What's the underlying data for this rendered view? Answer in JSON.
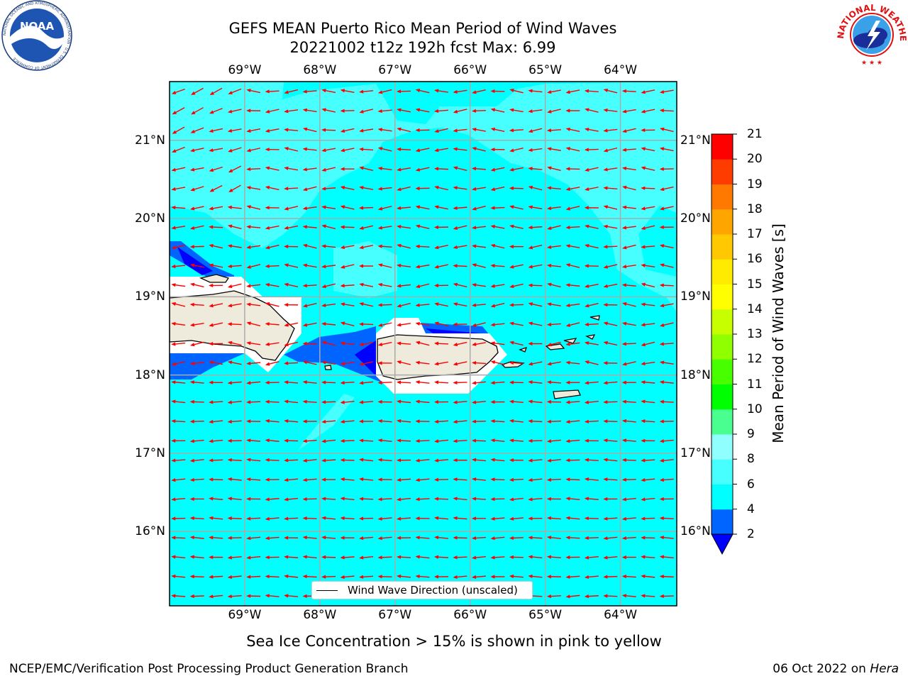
{
  "header": {
    "title_line1": "GEFS MEAN Puerto Rico Mean Period of Wind Waves",
    "title_line2": "20221002 t12z 192h fcst   Max: 6.99"
  },
  "logos": {
    "left": {
      "name": "NOAA",
      "ring_text": "NATIONAL OCEANIC AND ATMOSPHERIC ADMINISTRATION · U.S. DEPARTMENT OF COMMERCE"
    },
    "right": {
      "name": "NATIONAL WEATHER SERVICE"
    }
  },
  "map": {
    "lon_ticks": [
      "69°W",
      "68°W",
      "67°W",
      "66°W",
      "65°W",
      "64°W"
    ],
    "lat_ticks": [
      "21°N",
      "20°N",
      "19°N",
      "18°N",
      "17°N",
      "16°N"
    ],
    "lon_values": [
      -69,
      -68,
      -67,
      -66,
      -65,
      -64
    ],
    "lat_values": [
      21,
      20,
      19,
      18,
      17,
      16
    ],
    "extent": {
      "lon": [
        -70.0,
        -63.25
      ],
      "lat": [
        15.05,
        21.75
      ]
    },
    "ocean_color": "#00ffff",
    "arrow_color": "#ff0000",
    "land_color": "#efebdc",
    "legend_label": "Wind Wave Direction (unscaled)"
  },
  "colorbar": {
    "label": "Mean Period of Wind Waves [s]",
    "ticks": [
      "2",
      "4",
      "6",
      "8",
      "9",
      "10",
      "11",
      "12",
      "13",
      "14",
      "15",
      "16",
      "17",
      "18",
      "19",
      "20",
      "21"
    ],
    "colors": [
      "#0000ff",
      "#0064ff",
      "#00ffff",
      "#48ffff",
      "#90ffff",
      "#48ff90",
      "#00ff00",
      "#48ff00",
      "#90ff00",
      "#c8ff00",
      "#ffff00",
      "#ffeb00",
      "#ffc800",
      "#ffa500",
      "#ff7800",
      "#ff3c00",
      "#ff0000",
      "#ff0000"
    ]
  },
  "caption": "Sea Ice Concentration > 15% is shown in pink to yellow",
  "footer": {
    "left": "NCEP/EMC/Verification Post Processing Product Generation Branch",
    "right_date": "06 Oct 2022 on",
    "right_host": "Hera"
  }
}
